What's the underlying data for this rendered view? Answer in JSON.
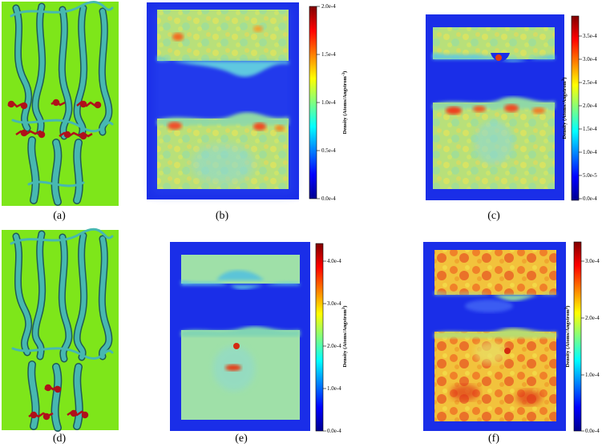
{
  "figure": {
    "panels": [
      {
        "id": "a",
        "label": "(a)",
        "type": "protein-structure",
        "lipid_cluster": "middle"
      },
      {
        "id": "b",
        "label": "(b)",
        "type": "density-map",
        "colorbar": {
          "title": "Density (Atoms/Angstrom",
          "superscript": "-3",
          "title_close": ")",
          "ticks": [
            "2.0e-4",
            "1.5e-4",
            "1.0e-4",
            "0.5e-4",
            "0.0e-4"
          ]
        }
      },
      {
        "id": "c",
        "label": "(c)",
        "type": "density-map",
        "colorbar": {
          "title": "Density (Atoms/Angstrom",
          "superscript": "3",
          "title_close": ")",
          "ticks": [
            "3.5e-4",
            "3.0e-4",
            "2.5e-4",
            "2.0e-4",
            "1.5e-4",
            "1.0e-4",
            "5.0e-5",
            "0.0e-4"
          ]
        }
      },
      {
        "id": "d",
        "label": "(d)",
        "type": "protein-structure",
        "lipid_cluster": "bottom"
      },
      {
        "id": "e",
        "label": "(e)",
        "type": "density-map",
        "colorbar": {
          "title": "Density (Atoms/Angstrom",
          "superscript": "3",
          "title_close": ")",
          "ticks": [
            "4.0e-4",
            "3.0e-4",
            "2.0e-4",
            "1.0e-4",
            "0.0e-4"
          ]
        }
      },
      {
        "id": "f",
        "label": "(f)",
        "type": "density-map",
        "colorbar": {
          "title": "Density (Atoms/Angstrom",
          "superscript": "3",
          "title_close": ")",
          "ticks": [
            "3.0e-4",
            "2.0e-4",
            "1.0e-4",
            "0.0e-4"
          ]
        }
      }
    ]
  },
  "colors": {
    "background_green": "#7ee61a",
    "protein": "#47b8b0",
    "protein_dark": "#1f5a57",
    "lipid": "#b0101a",
    "map_blue": "#2233e0",
    "map_slab": "#a8e48a"
  }
}
